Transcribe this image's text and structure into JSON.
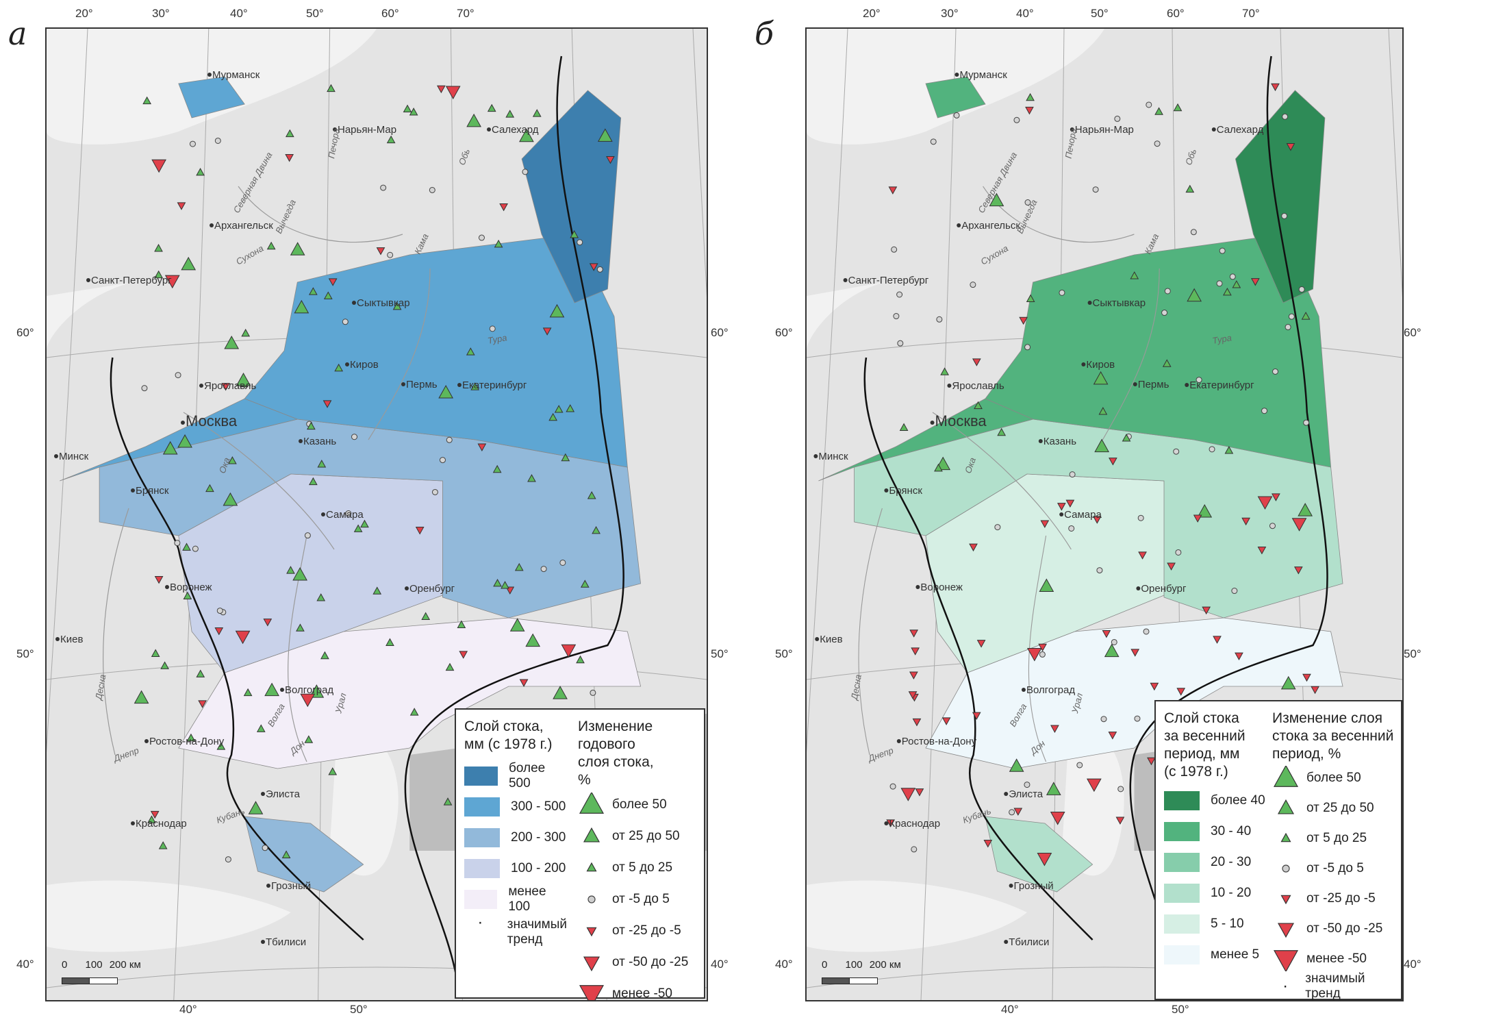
{
  "panels": [
    {
      "letter": "а",
      "legend": {
        "layer_title": "Слой стока, мм (с 1978 г.)",
        "layer_classes": [
          {
            "label": "более 500",
            "color": "#3d7fae"
          },
          {
            "label": "300 - 500",
            "color": "#5ea6d3"
          },
          {
            "label": "200 - 300",
            "color": "#92b9da"
          },
          {
            "label": "100 - 200",
            "color": "#c9d2ea"
          },
          {
            "label": "менее 100",
            "color": "#f3eef8"
          }
        ],
        "significant_label": "значимый тренд",
        "change_title": "Изменение годового слоя стока, %",
        "change_classes": [
          {
            "label": "более 50",
            "symbol": "triangle-up-large"
          },
          {
            "label": "от 25 до 50",
            "symbol": "triangle-up-medium"
          },
          {
            "label": "от 5 до 25",
            "symbol": "triangle-up-small"
          },
          {
            "label": "от -5 до 5",
            "symbol": "circle"
          },
          {
            "label": "от -25 до -5",
            "symbol": "triangle-down-small"
          },
          {
            "label": "от -50 до -25",
            "symbol": "triangle-down-medium"
          },
          {
            "label": "менее -50",
            "symbol": "triangle-down-large"
          }
        ]
      }
    },
    {
      "letter": "б",
      "legend": {
        "layer_title": "Слой стока за весенний период, мм (с 1978 г.)",
        "layer_classes": [
          {
            "label": "более 40",
            "color": "#2e8b57"
          },
          {
            "label": "30 - 40",
            "color": "#52b37e"
          },
          {
            "label": "20 - 30",
            "color": "#86cdab"
          },
          {
            "label": "10 - 20",
            "color": "#b2e0cc"
          },
          {
            "label": "5 - 10",
            "color": "#d6efe4"
          },
          {
            "label": "менее 5",
            "color": "#eef7fb"
          }
        ],
        "change_title": "Изменение слоя стока за весенний период, %",
        "change_classes": [
          {
            "label": "более 50",
            "symbol": "triangle-up-large"
          },
          {
            "label": "от 25 до 50",
            "symbol": "triangle-up-medium"
          },
          {
            "label": "от 5 до 25",
            "symbol": "triangle-up-small"
          },
          {
            "label": "от -5 до 5",
            "symbol": "circle"
          },
          {
            "label": "от -25 до -5",
            "symbol": "triangle-down-small"
          },
          {
            "label": "от -50 до -25",
            "symbol": "triangle-down-medium"
          },
          {
            "label": "менее -50",
            "symbol": "triangle-down-large"
          }
        ],
        "significant_label": "значимый тренд"
      }
    }
  ],
  "graticule": {
    "top_lon": [
      "20°",
      "30°",
      "40°",
      "50°",
      "60°",
      "70°"
    ],
    "bottom_lon": [
      "40°",
      "50°"
    ],
    "left_lat": [
      "60°",
      "50°",
      "40°"
    ],
    "right_lat": [
      "60°",
      "50°",
      "40°"
    ]
  },
  "scale_bar": {
    "labels": [
      "0",
      "100",
      "200 км"
    ]
  },
  "cities": [
    "Мурманск",
    "Нарьян-Мар",
    "Салехард",
    "Архангельск",
    "Санкт-Петербург",
    "Сыктывкар",
    "Киров",
    "Пермь",
    "Екатеринбург",
    "Ярославль",
    "Москва",
    "Казань",
    "Минск",
    "Брянск",
    "Самара",
    "Воронеж",
    "Оренбург",
    "Киев",
    "Волгоград",
    "Ростов-на-Дону",
    "Элиста",
    "Краснодар",
    "Грозный",
    "Тбилиси"
  ],
  "rivers": [
    "Северная Двина",
    "Вычегда",
    "Печора",
    "Сухона",
    "Кама",
    "Ока",
    "Волга",
    "Дон",
    "Днепр",
    "Кубань",
    "Урал",
    "Обь",
    "Тура",
    "Десна"
  ],
  "colors": {
    "up": "#5db85c",
    "down": "#e0404a",
    "border": "#111111"
  }
}
